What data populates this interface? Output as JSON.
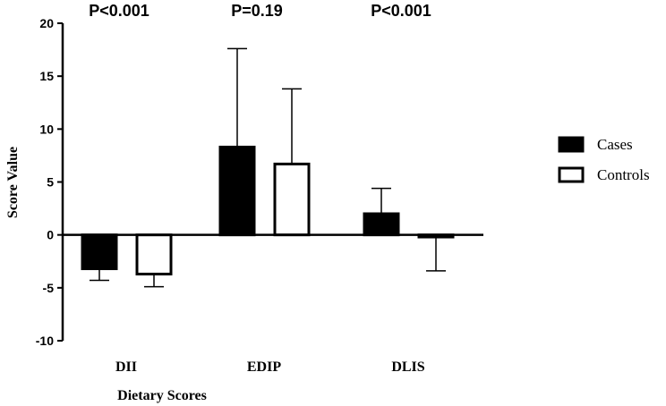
{
  "chart_data": {
    "type": "bar",
    "title": "",
    "xlabel": "Dietary Scores",
    "ylabel": "Score Value",
    "ylim": [
      -10,
      20
    ],
    "yticks": [
      -10,
      -5,
      0,
      5,
      10,
      15,
      20
    ],
    "ytick_labels": [
      "-10",
      "-5",
      "0",
      "5",
      "10",
      "15",
      "20"
    ],
    "grid": false,
    "legend_position": "right",
    "categories": [
      "DII",
      "EDIP",
      "DLIS"
    ],
    "p_values": [
      "P<0.001",
      "P=0.19",
      "P<0.001"
    ],
    "series": [
      {
        "name": "Cases",
        "fill": "#000000",
        "values": [
          -3.2,
          8.3,
          2.0
        ],
        "errors": [
          1.1,
          9.3,
          2.4
        ]
      },
      {
        "name": "Controls",
        "fill": "#ffffff",
        "values": [
          -3.7,
          6.7,
          -0.2
        ],
        "errors": [
          1.2,
          7.1,
          3.2
        ]
      }
    ]
  }
}
